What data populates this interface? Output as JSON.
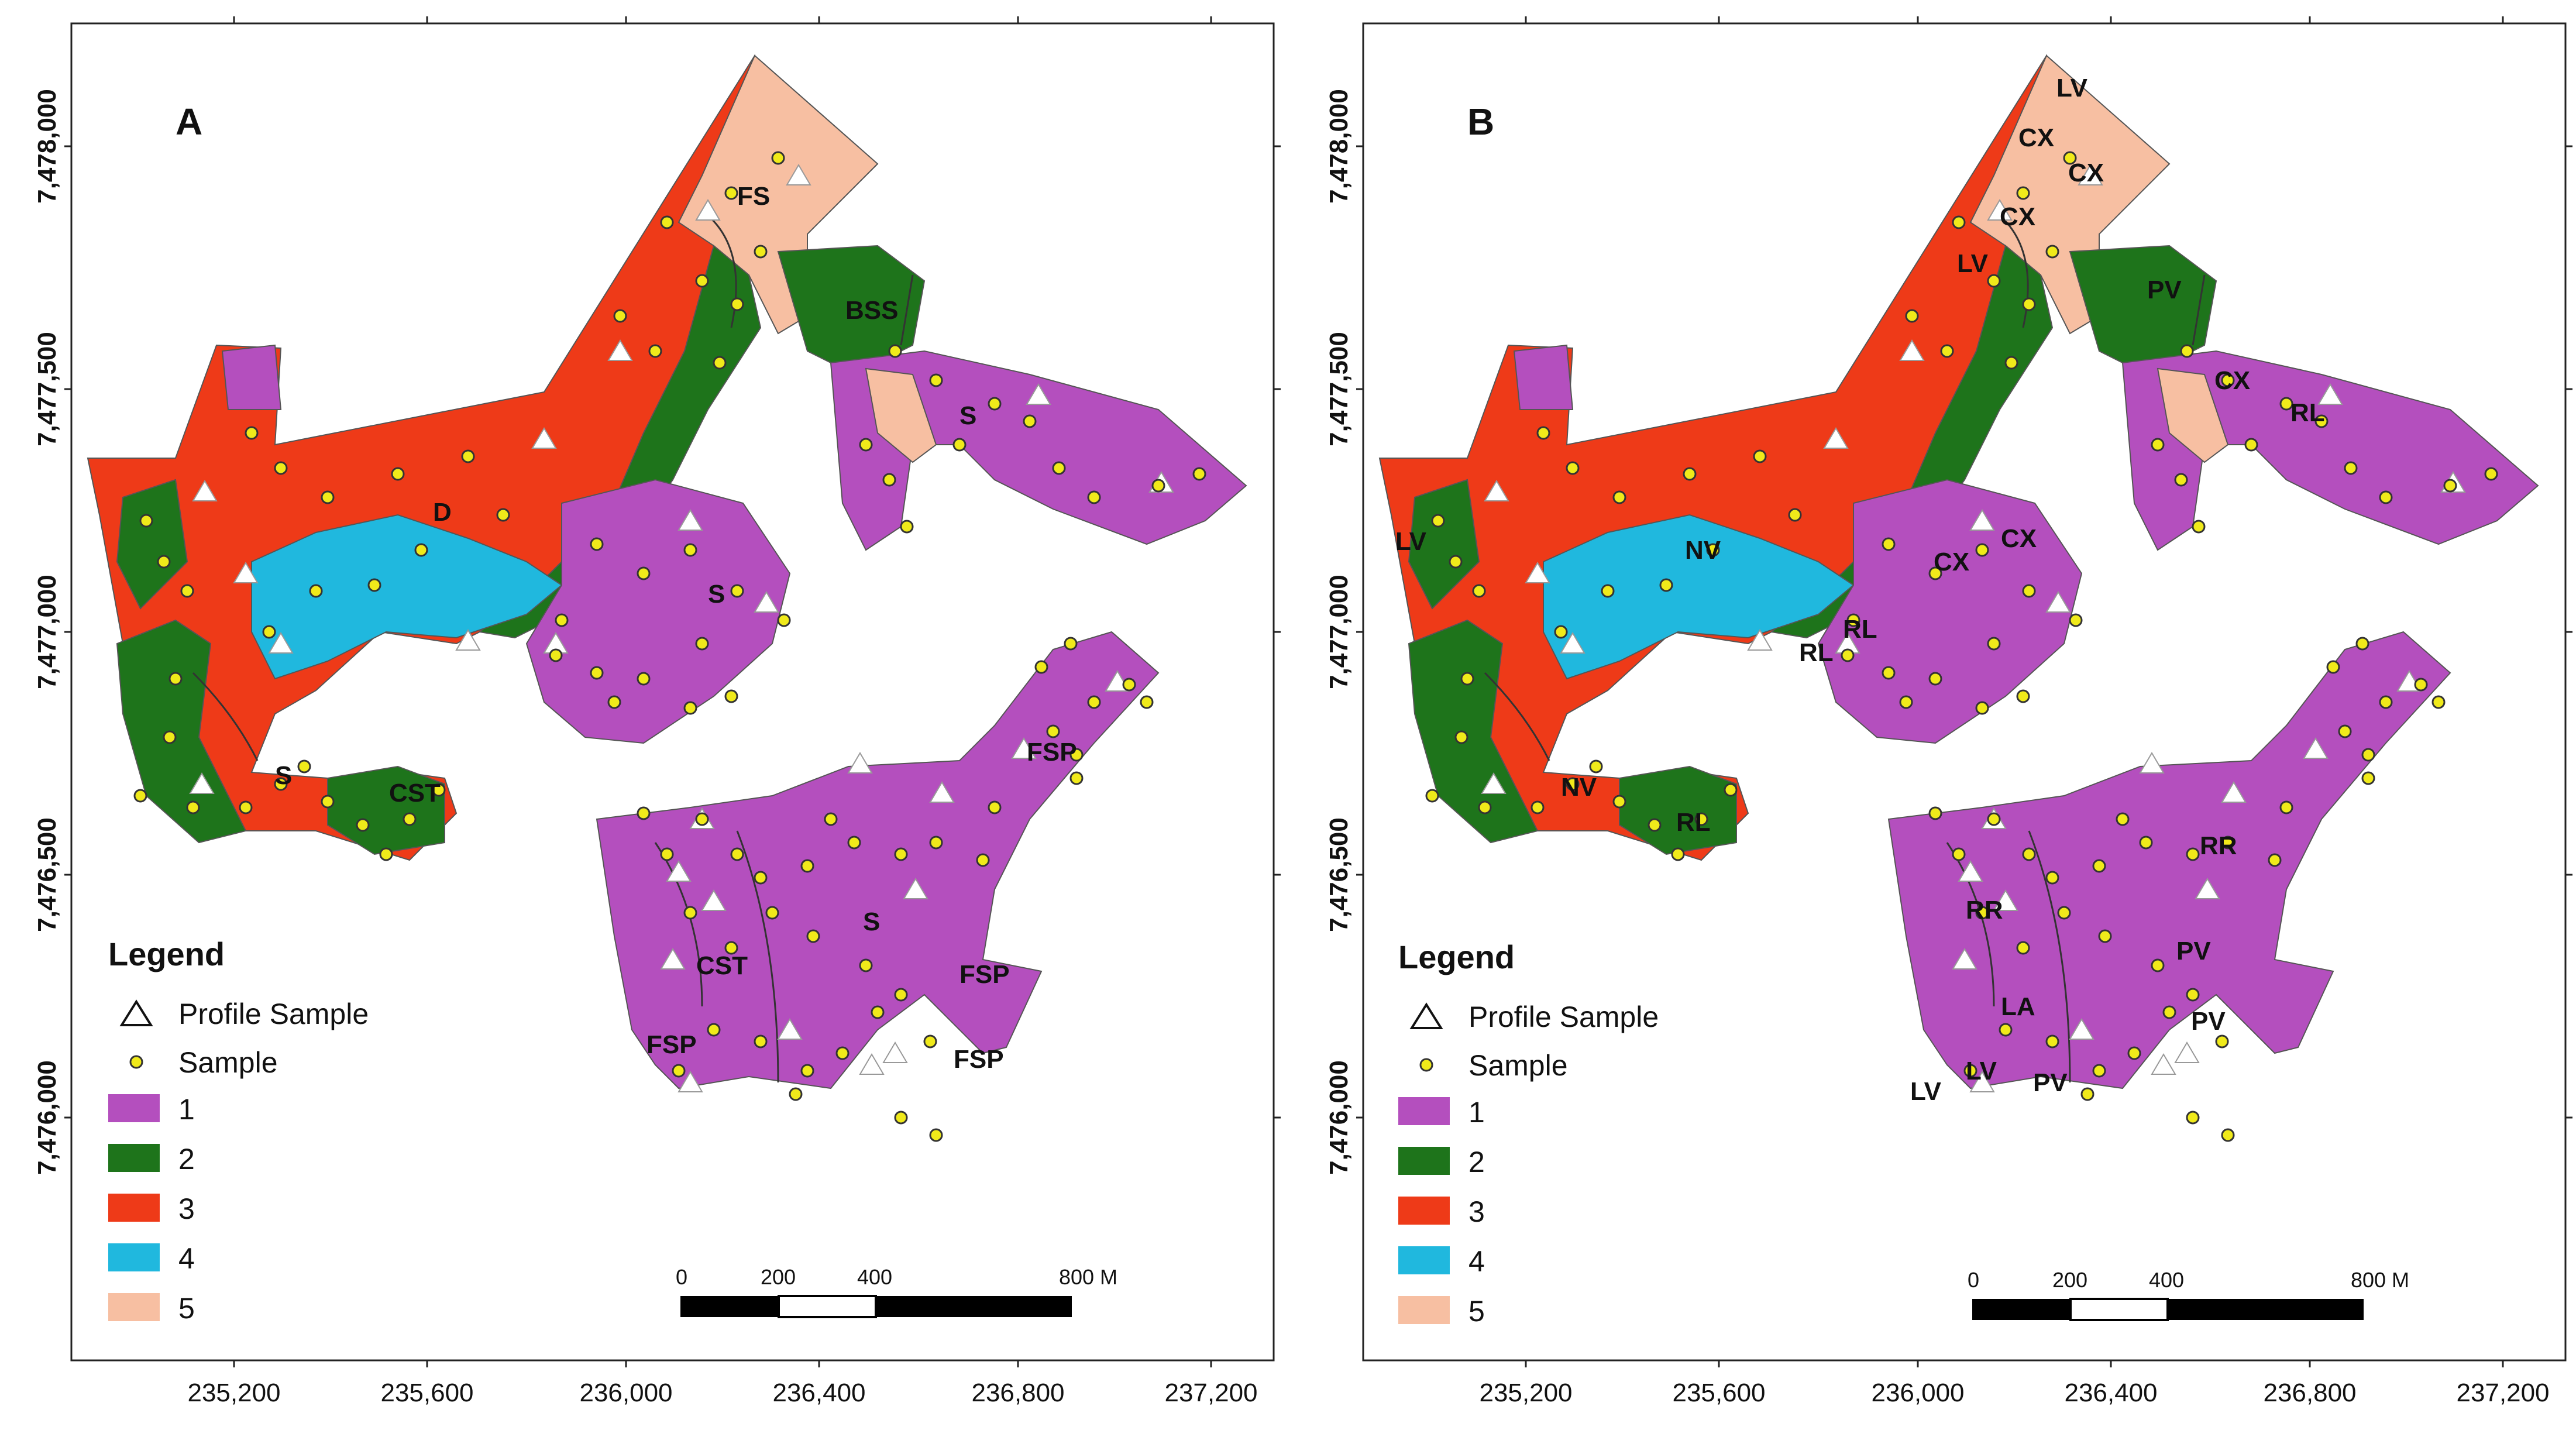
{
  "colors": {
    "class_1": "#b44fbe",
    "class_2": "#1e741b",
    "class_3": "#ee3a18",
    "class_4": "#20b8de",
    "class_5": "#f7bfa2",
    "sample": "#f0ea1a"
  },
  "map_a": {
    "label": "A",
    "units": [
      "FS",
      "BSS",
      "D",
      "S",
      "S",
      "S",
      "CST",
      "FSP",
      "S",
      "CST",
      "FSP",
      "FSP",
      "FSP"
    ]
  },
  "map_b": {
    "label": "B",
    "units": [
      "LV",
      "CX",
      "CX",
      "CX",
      "LV",
      "PV",
      "CX",
      "RL",
      "LV",
      "NV",
      "CX",
      "CX",
      "RL",
      "RL",
      "NV",
      "RL",
      "RR",
      "RR",
      "PV",
      "PV",
      "LA",
      "LV",
      "PV",
      "LV"
    ]
  },
  "x_axis": {
    "ticks": [
      "235,200",
      "235,600",
      "236,000",
      "236,400",
      "236,800",
      "237,200"
    ]
  },
  "y_axis": {
    "ticks": [
      "7,478,000",
      "7,477,500",
      "7,477,000",
      "7,476,500",
      "7,476,000"
    ]
  },
  "legend": {
    "title": "Legend",
    "profile_sample": "Profile Sample",
    "sample": "Sample",
    "classes": [
      "1",
      "2",
      "3",
      "4",
      "5"
    ]
  },
  "scale_bar": {
    "labels": [
      "0",
      "200",
      "400",
      "800 M"
    ]
  }
}
